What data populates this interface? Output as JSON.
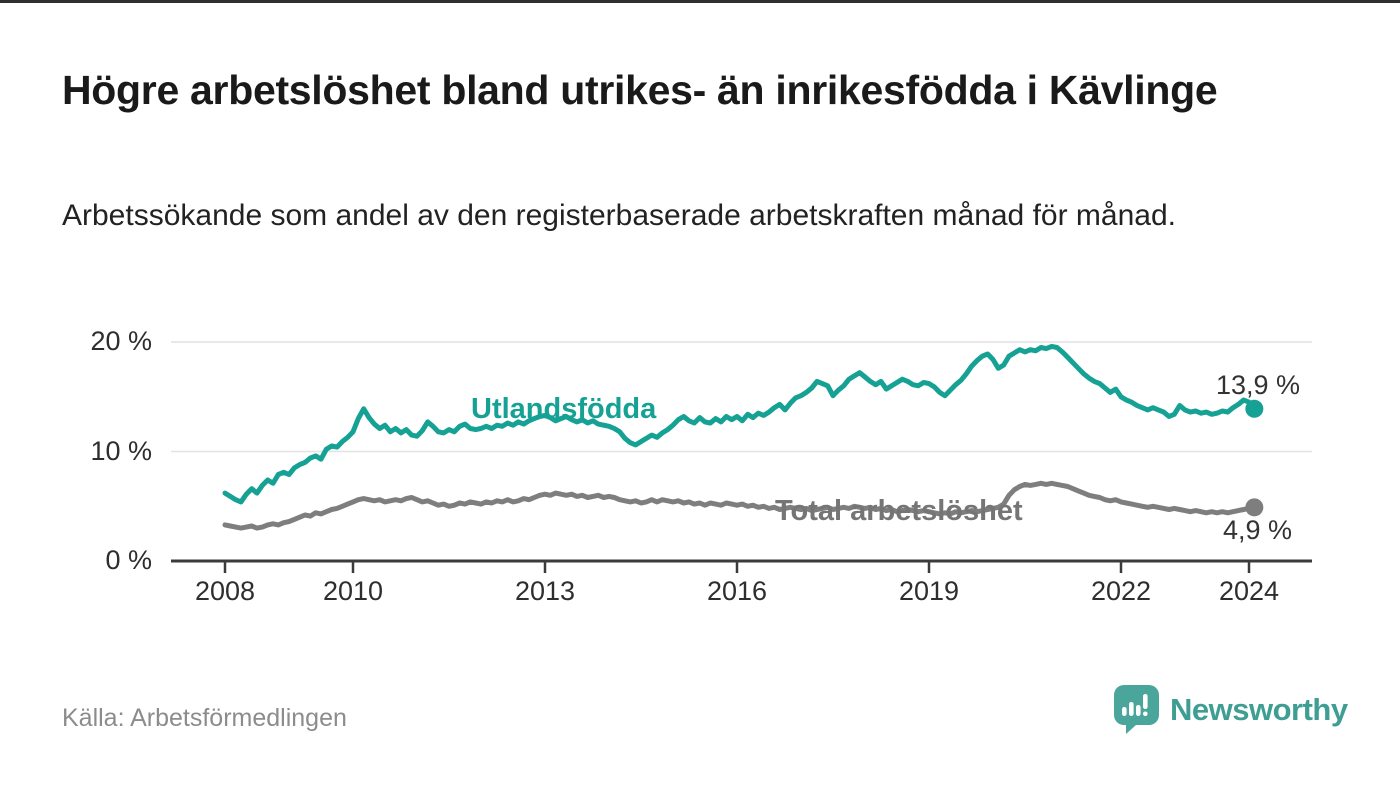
{
  "header": {
    "title": "Högre arbetslöshet bland utrikes- än inrikesfödda i Kävlinge",
    "subtitle": "Arbetssökande som andel av den registerbaserade arbetskraften månad för månad."
  },
  "footer": {
    "source": "Källa: Arbetsförmedlingen",
    "logo_text": "Newsworthy"
  },
  "colors": {
    "teal_line": "#16a195",
    "gray_line": "#7e7e7e",
    "axis": "#3b3b3b",
    "gridline": "#e2e2e2",
    "logo_teal": "#4aa59b"
  },
  "chart_data": {
    "type": "line",
    "title": "Högre arbetslöshet bland utrikes- än inrikesfödda i Kävlinge",
    "subtitle": "Arbetssökande som andel av den registerbaserade arbetskraften månad för månad.",
    "x_start": "2008-01",
    "x_end": "2024-02",
    "x_ticks": [
      2008,
      2010,
      2013,
      2016,
      2019,
      2022,
      2024
    ],
    "y_ticks": [
      {
        "label": "20 %",
        "value": 20
      },
      {
        "label": "10 %",
        "value": 10
      },
      {
        "label": "0 %",
        "value": 0
      }
    ],
    "ylim": [
      0,
      20
    ],
    "grid": true,
    "legend_position": "inline-labels",
    "series": [
      {
        "name": "Utlandsfödda",
        "color": "#16a195",
        "end_label": "13,9 %",
        "end_value": 13.9,
        "values": [
          6.2,
          5.9,
          5.6,
          5.4,
          6.1,
          6.6,
          6.2,
          6.9,
          7.4,
          7.1,
          7.9,
          8.1,
          7.9,
          8.5,
          8.8,
          9.0,
          9.4,
          9.6,
          9.3,
          10.2,
          10.5,
          10.4,
          10.9,
          11.3,
          11.8,
          13.0,
          13.9,
          13.1,
          12.5,
          12.1,
          12.4,
          11.8,
          12.1,
          11.7,
          12.0,
          11.5,
          11.4,
          11.9,
          12.7,
          12.3,
          11.8,
          11.7,
          12.0,
          11.8,
          12.3,
          12.5,
          12.1,
          12.0,
          12.1,
          12.3,
          12.1,
          12.4,
          12.3,
          12.6,
          12.4,
          12.7,
          12.5,
          12.8,
          13.0,
          13.2,
          13.3,
          13.1,
          12.8,
          13.0,
          13.2,
          12.9,
          12.7,
          12.9,
          12.6,
          12.8,
          12.5,
          12.4,
          12.3,
          12.1,
          11.8,
          11.2,
          10.8,
          10.6,
          10.9,
          11.2,
          11.5,
          11.3,
          11.7,
          12.0,
          12.4,
          12.9,
          13.2,
          12.8,
          12.6,
          13.1,
          12.7,
          12.6,
          13.0,
          12.7,
          13.2,
          12.9,
          13.2,
          12.8,
          13.4,
          13.1,
          13.5,
          13.3,
          13.6,
          14.0,
          14.3,
          13.8,
          14.4,
          14.9,
          15.1,
          15.4,
          15.8,
          16.4,
          16.2,
          16.0,
          15.1,
          15.6,
          16.0,
          16.6,
          16.9,
          17.2,
          16.8,
          16.4,
          16.1,
          16.4,
          15.7,
          16.0,
          16.3,
          16.6,
          16.4,
          16.1,
          16.0,
          16.3,
          16.2,
          15.9,
          15.4,
          15.1,
          15.6,
          16.1,
          16.5,
          17.1,
          17.8,
          18.3,
          18.7,
          18.9,
          18.4,
          17.6,
          17.9,
          18.7,
          19.0,
          19.3,
          19.1,
          19.3,
          19.2,
          19.5,
          19.4,
          19.6,
          19.5,
          19.1,
          18.6,
          18.1,
          17.6,
          17.1,
          16.7,
          16.4,
          16.2,
          15.8,
          15.4,
          15.7,
          15.0,
          14.7,
          14.5,
          14.2,
          14.0,
          13.8,
          14.0,
          13.8,
          13.6,
          13.2,
          13.4,
          14.2,
          13.8,
          13.6,
          13.7,
          13.5,
          13.6,
          13.4,
          13.5,
          13.7,
          13.6,
          14.0,
          14.3,
          14.7,
          14.5,
          13.9
        ]
      },
      {
        "name": "Total arbetslöshet",
        "color": "#7e7e7e",
        "end_label": "4,9 %",
        "end_value": 4.9,
        "values": [
          3.3,
          3.2,
          3.1,
          3.0,
          3.1,
          3.2,
          3.0,
          3.1,
          3.3,
          3.4,
          3.3,
          3.5,
          3.6,
          3.8,
          4.0,
          4.2,
          4.1,
          4.4,
          4.3,
          4.5,
          4.7,
          4.8,
          5.0,
          5.2,
          5.4,
          5.6,
          5.7,
          5.6,
          5.5,
          5.6,
          5.4,
          5.5,
          5.6,
          5.5,
          5.7,
          5.8,
          5.6,
          5.4,
          5.5,
          5.3,
          5.1,
          5.2,
          5.0,
          5.1,
          5.3,
          5.2,
          5.4,
          5.3,
          5.2,
          5.4,
          5.3,
          5.5,
          5.4,
          5.6,
          5.4,
          5.5,
          5.7,
          5.6,
          5.8,
          6.0,
          6.1,
          6.0,
          6.2,
          6.1,
          6.0,
          6.1,
          5.9,
          6.0,
          5.8,
          5.9,
          6.0,
          5.8,
          5.9,
          5.8,
          5.6,
          5.5,
          5.4,
          5.5,
          5.3,
          5.4,
          5.6,
          5.4,
          5.6,
          5.5,
          5.4,
          5.5,
          5.3,
          5.4,
          5.2,
          5.3,
          5.1,
          5.3,
          5.2,
          5.1,
          5.3,
          5.2,
          5.1,
          5.2,
          5.0,
          5.1,
          4.9,
          5.0,
          4.8,
          4.9,
          4.7,
          4.8,
          4.9,
          4.8,
          4.7,
          4.8,
          4.6,
          4.7,
          4.8,
          4.9,
          4.7,
          4.8,
          4.9,
          4.8,
          5.0,
          4.9,
          4.8,
          4.9,
          4.7,
          4.8,
          4.6,
          4.7,
          4.5,
          4.6,
          4.7,
          4.6,
          4.5,
          4.6,
          4.5,
          4.4,
          4.3,
          4.4,
          4.3,
          4.5,
          4.4,
          4.5,
          4.6,
          4.5,
          4.6,
          4.7,
          4.8,
          4.9,
          5.2,
          6.0,
          6.5,
          6.8,
          7.0,
          6.9,
          7.0,
          7.1,
          7.0,
          7.1,
          7.0,
          6.9,
          6.8,
          6.6,
          6.4,
          6.2,
          6.0,
          5.9,
          5.8,
          5.6,
          5.5,
          5.6,
          5.4,
          5.3,
          5.2,
          5.1,
          5.0,
          4.9,
          5.0,
          4.9,
          4.8,
          4.7,
          4.8,
          4.7,
          4.6,
          4.5,
          4.6,
          4.5,
          4.4,
          4.5,
          4.4,
          4.5,
          4.4,
          4.5,
          4.6,
          4.7,
          4.8,
          4.9
        ]
      }
    ]
  }
}
